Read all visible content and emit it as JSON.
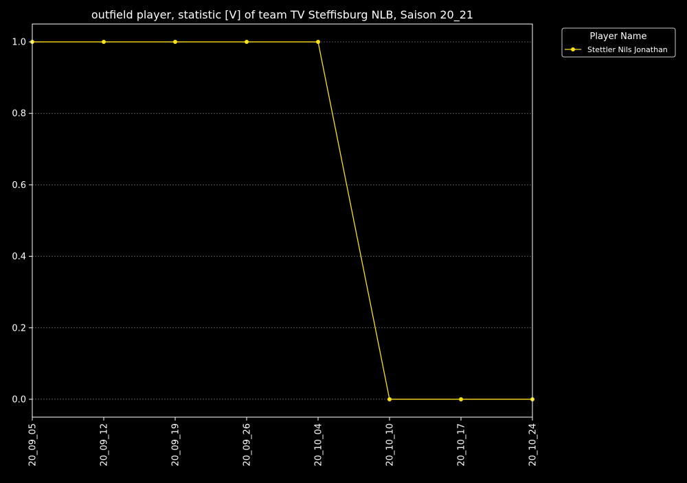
{
  "chart_data": {
    "type": "line",
    "title": "outfield player, statistic [V] of team TV Steffisburg NLB, Saison 20_21",
    "xlabel": "",
    "ylabel": "",
    "x": [
      "20_09_05",
      "20_09_12",
      "20_09_19",
      "20_09_26",
      "20_10_04",
      "20_10_10",
      "20_10_17",
      "20_10_24"
    ],
    "series": [
      {
        "name": "Stettler Nils Jonathan",
        "values": [
          1.0,
          1.0,
          1.0,
          1.0,
          1.0,
          0.0,
          0.0,
          0.0
        ],
        "color": "#FFE119"
      }
    ],
    "ylim": [
      -0.05,
      1.05
    ],
    "yticks": [
      0.0,
      0.2,
      0.4,
      0.6,
      0.8,
      1.0
    ],
    "ytick_labels": [
      "0.0",
      "0.2",
      "0.4",
      "0.6",
      "0.8",
      "1.0"
    ],
    "grid": true,
    "legend": {
      "title": "Player Name",
      "placement": "outside-top-right"
    },
    "colors": {
      "background": "#000000",
      "axes": "#FFFFFF",
      "grid": "#888888"
    }
  }
}
